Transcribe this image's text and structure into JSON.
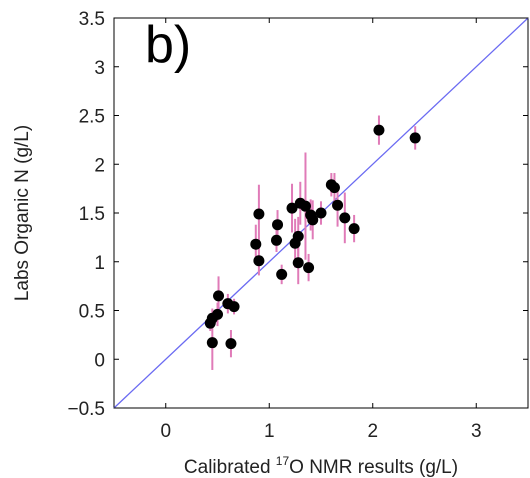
{
  "chart_data": {
    "type": "scatter",
    "panel_label": "b)",
    "xlabel_parts": [
      "Calibrated ",
      "17",
      "O NMR results (g/L)"
    ],
    "ylabel": "Labs Organic N (g/L)",
    "xlim": [
      -0.5,
      3.5
    ],
    "ylim": [
      -0.5,
      3.5
    ],
    "x_ticks": [
      0,
      1,
      2,
      3
    ],
    "x_tick_labels": [
      "0",
      "1",
      "2",
      "3"
    ],
    "y_ticks": [
      -0.5,
      0,
      0.5,
      1,
      1.5,
      2,
      2.5,
      3,
      3.5
    ],
    "y_tick_labels": [
      "−0.5",
      "0",
      "0.5",
      "1",
      "1.5",
      "2",
      "2.5",
      "3",
      "3.5"
    ],
    "grid": false,
    "reference_line": {
      "x": [
        -0.5,
        3.5
      ],
      "y": [
        -0.5,
        3.5
      ],
      "color": "#6b6bf2"
    },
    "point_color": "#000000",
    "errorbar_color": "#e07bb8",
    "points": [
      {
        "x": 0.43,
        "y": 0.37,
        "err": 0.08
      },
      {
        "x": 0.45,
        "y": 0.42,
        "err": 0.1
      },
      {
        "x": 0.45,
        "y": 0.17,
        "err": 0.28
      },
      {
        "x": 0.5,
        "y": 0.46,
        "err": 0.12
      },
      {
        "x": 0.51,
        "y": 0.65,
        "err": 0.2
      },
      {
        "x": 0.6,
        "y": 0.57,
        "err": 0.1
      },
      {
        "x": 0.63,
        "y": 0.16,
        "err": 0.14
      },
      {
        "x": 0.66,
        "y": 0.54,
        "err": 0.08
      },
      {
        "x": 0.87,
        "y": 1.18,
        "err": 0.2
      },
      {
        "x": 0.9,
        "y": 1.49,
        "err": 0.3
      },
      {
        "x": 0.9,
        "y": 1.01,
        "err": 0.15
      },
      {
        "x": 1.07,
        "y": 1.22,
        "err": 0.12
      },
      {
        "x": 1.08,
        "y": 1.38,
        "err": 0.15
      },
      {
        "x": 1.12,
        "y": 0.87,
        "err": 0.1
      },
      {
        "x": 1.22,
        "y": 1.55,
        "err": 0.25
      },
      {
        "x": 1.25,
        "y": 1.19,
        "err": 0.25
      },
      {
        "x": 1.28,
        "y": 1.26,
        "err": 0.2
      },
      {
        "x": 1.28,
        "y": 0.99,
        "err": 0.22
      },
      {
        "x": 1.3,
        "y": 1.6,
        "err": 0.22
      },
      {
        "x": 1.35,
        "y": 1.57,
        "err": 0.55
      },
      {
        "x": 1.38,
        "y": 0.94,
        "err": 0.14
      },
      {
        "x": 1.4,
        "y": 1.48,
        "err": 0.16
      },
      {
        "x": 1.42,
        "y": 1.43,
        "err": 0.2
      },
      {
        "x": 1.5,
        "y": 1.5,
        "err": 0.12
      },
      {
        "x": 1.6,
        "y": 1.79,
        "err": 0.12
      },
      {
        "x": 1.63,
        "y": 1.76,
        "err": 0.15
      },
      {
        "x": 1.66,
        "y": 1.58,
        "err": 0.22
      },
      {
        "x": 1.73,
        "y": 1.45,
        "err": 0.26
      },
      {
        "x": 1.82,
        "y": 1.34,
        "err": 0.14
      },
      {
        "x": 2.06,
        "y": 2.35,
        "err": 0.15
      },
      {
        "x": 2.41,
        "y": 2.27,
        "err": 0.12
      }
    ]
  }
}
